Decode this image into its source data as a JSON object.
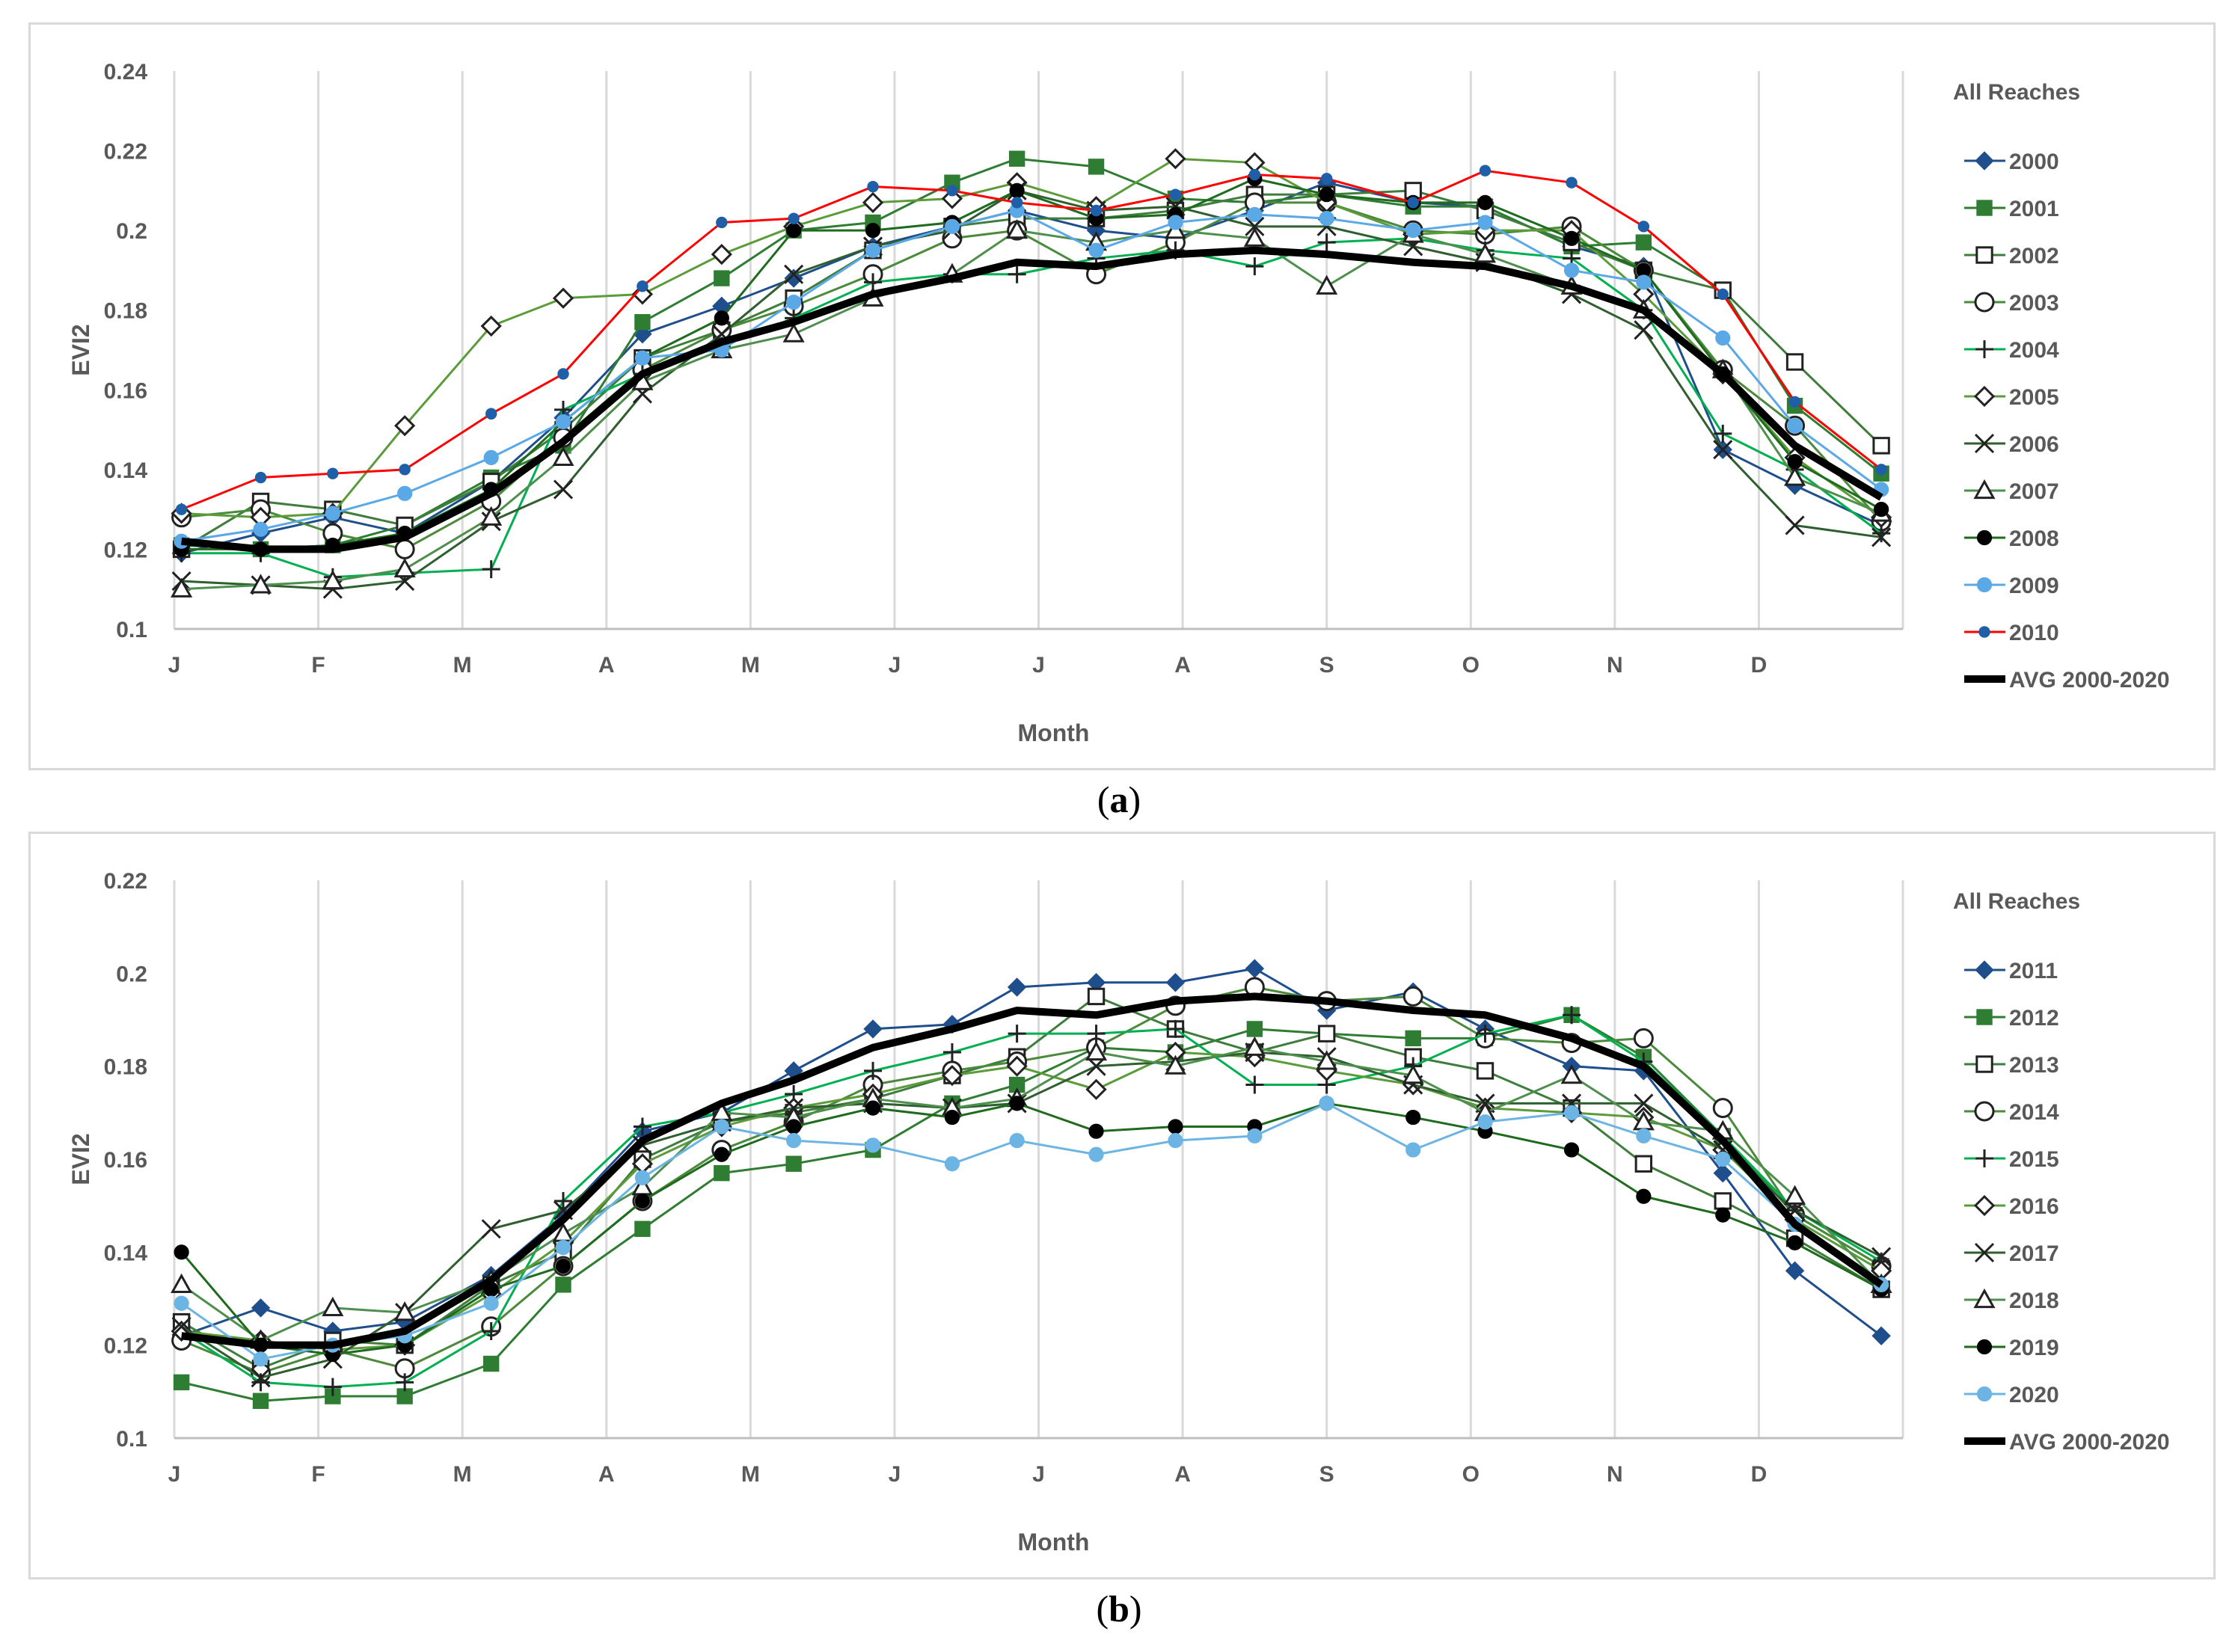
{
  "colors": {
    "grid": "#d9d9d9",
    "axis_text": "#595959",
    "avg": "#000000"
  },
  "chart_data": [
    {
      "type": "line",
      "panel_label": "a",
      "title": "All Reaches",
      "xlabel": "Month",
      "ylabel": "EVI2",
      "ylim": [
        0.1,
        0.24
      ],
      "yticks": [
        "0.1",
        "0.12",
        "0.14",
        "0.16",
        "0.18",
        "0.2",
        "0.22",
        "0.24"
      ],
      "month_labels": [
        "J",
        "F",
        "M",
        "A",
        "M",
        "J",
        "J",
        "A",
        "S",
        "O",
        "N",
        "D"
      ],
      "x_range": [
        0,
        12
      ],
      "x": [
        0.05,
        0.6,
        1.1,
        1.6,
        2.2,
        2.7,
        3.25,
        3.8,
        4.3,
        4.85,
        5.4,
        5.85,
        6.4,
        6.95,
        7.5,
        8.0,
        8.6,
        9.1,
        9.7,
        10.2,
        10.75,
        11.25,
        11.85
      ],
      "legend_position": "right",
      "grid": "vertical",
      "series": [
        {
          "name": "2000",
          "color": "#1f4e8c",
          "marker": "diamond-filled",
          "width": 3,
          "values": [
            0.119,
            0.124,
            0.128,
            0.124,
            0.137,
            0.153,
            0.174,
            0.181,
            0.188,
            0.196,
            0.201,
            0.205,
            0.2,
            0.198,
            0.205,
            0.212,
            0.207,
            0.206,
            0.196,
            0.191,
            0.145,
            0.136,
            0.126
          ]
        },
        {
          "name": "2001",
          "color": "#2e7d32",
          "marker": "square-filled",
          "width": 3,
          "values": [
            0.121,
            0.12,
            0.121,
            0.126,
            0.138,
            0.146,
            0.177,
            0.188,
            0.2,
            0.202,
            0.212,
            0.218,
            0.216,
            0.208,
            0.207,
            0.209,
            0.206,
            0.206,
            0.196,
            0.197,
            0.185,
            0.156,
            0.139
          ]
        },
        {
          "name": "2002",
          "color": "#3e7d3c",
          "marker": "square-open",
          "width": 3,
          "values": [
            0.12,
            0.132,
            0.13,
            0.126,
            0.137,
            0.15,
            0.168,
            0.175,
            0.183,
            0.195,
            0.201,
            0.203,
            0.203,
            0.205,
            0.209,
            0.209,
            0.21,
            0.205,
            0.197,
            0.19,
            0.185,
            0.167,
            0.146
          ]
        },
        {
          "name": "2003",
          "color": "#4a8a3a",
          "marker": "circle-open",
          "width": 3,
          "values": [
            0.128,
            0.13,
            0.124,
            0.12,
            0.132,
            0.148,
            0.165,
            0.175,
            0.181,
            0.189,
            0.198,
            0.2,
            0.189,
            0.197,
            0.207,
            0.207,
            0.2,
            0.199,
            0.201,
            0.19,
            0.165,
            0.151,
            0.127
          ]
        },
        {
          "name": "2004",
          "color": "#00b050",
          "marker": "plus",
          "width": 3,
          "values": [
            0.119,
            0.119,
            0.113,
            0.114,
            0.115,
            0.155,
            0.164,
            0.171,
            0.178,
            0.187,
            0.189,
            0.189,
            0.193,
            0.195,
            0.191,
            0.197,
            0.198,
            0.195,
            0.193,
            0.18,
            0.149,
            0.14,
            0.124
          ]
        },
        {
          "name": "2005",
          "color": "#5b9b3a",
          "marker": "diamond-open",
          "width": 3,
          "values": [
            0.129,
            0.128,
            0.129,
            0.151,
            0.176,
            0.183,
            0.184,
            0.194,
            0.201,
            0.207,
            0.208,
            0.212,
            0.206,
            0.218,
            0.217,
            0.207,
            0.199,
            0.2,
            0.2,
            0.184,
            0.164,
            0.143,
            0.128
          ]
        },
        {
          "name": "2006",
          "color": "#2f5f2f",
          "marker": "x",
          "width": 3,
          "values": [
            0.112,
            0.111,
            0.11,
            0.112,
            0.127,
            0.135,
            0.159,
            0.174,
            0.189,
            0.196,
            0.2,
            0.21,
            0.205,
            0.206,
            0.201,
            0.201,
            0.196,
            0.192,
            0.184,
            0.175,
            0.145,
            0.126,
            0.123
          ]
        },
        {
          "name": "2007",
          "color": "#4e8f4e",
          "marker": "triangle-open",
          "width": 3,
          "values": [
            0.11,
            0.111,
            0.112,
            0.115,
            0.128,
            0.143,
            0.162,
            0.17,
            0.174,
            0.183,
            0.189,
            0.2,
            0.197,
            0.2,
            0.198,
            0.186,
            0.199,
            0.194,
            0.186,
            0.18,
            0.165,
            0.138,
            0.129
          ]
        },
        {
          "name": "2008",
          "color": "#1e6b1e",
          "marker": "circle-filled",
          "width": 3,
          "values": [
            0.12,
            0.12,
            0.121,
            0.124,
            0.135,
            0.152,
            0.168,
            0.178,
            0.2,
            0.2,
            0.202,
            0.21,
            0.203,
            0.204,
            0.213,
            0.209,
            0.207,
            0.207,
            0.198,
            0.19,
            0.164,
            0.142,
            0.13
          ]
        },
        {
          "name": "2009",
          "color": "#5aa9e6",
          "marker": "circle-filled",
          "width": 3,
          "values": [
            0.122,
            0.125,
            0.129,
            0.134,
            0.143,
            0.152,
            0.168,
            0.17,
            0.182,
            0.195,
            0.201,
            0.205,
            0.195,
            0.202,
            0.204,
            0.203,
            0.2,
            0.202,
            0.19,
            0.187,
            0.173,
            0.151,
            0.135
          ]
        },
        {
          "name": "2010",
          "color": "#ff0000",
          "marker": "circle-filled-blue",
          "width": 3,
          "values": [
            0.13,
            0.138,
            0.139,
            0.14,
            0.154,
            0.164,
            0.186,
            0.202,
            0.203,
            0.211,
            0.21,
            0.207,
            0.205,
            0.209,
            0.214,
            0.213,
            0.207,
            0.215,
            0.212,
            0.201,
            0.184,
            0.157,
            0.14
          ]
        },
        {
          "name": "AVG 2000-2020",
          "color": "#000000",
          "marker": "none",
          "width": 10,
          "values": [
            0.122,
            0.12,
            0.12,
            0.123,
            0.134,
            0.147,
            0.164,
            0.172,
            0.177,
            0.184,
            0.188,
            0.192,
            0.191,
            0.194,
            0.195,
            0.194,
            0.192,
            0.191,
            0.186,
            0.18,
            0.164,
            0.146,
            0.133
          ]
        }
      ]
    },
    {
      "type": "line",
      "panel_label": "b",
      "title": "All Reaches",
      "xlabel": "Month",
      "ylabel": "EVI2",
      "ylim": [
        0.1,
        0.22
      ],
      "yticks": [
        "0.1",
        "0.12",
        "0.14",
        "0.16",
        "0.18",
        "0.2",
        "0.22"
      ],
      "month_labels": [
        "J",
        "F",
        "M",
        "A",
        "M",
        "J",
        "J",
        "A",
        "S",
        "O",
        "N",
        "D"
      ],
      "x_range": [
        0,
        12
      ],
      "x": [
        0.05,
        0.6,
        1.1,
        1.6,
        2.2,
        2.7,
        3.25,
        3.8,
        4.3,
        4.85,
        5.4,
        5.85,
        6.4,
        6.95,
        7.5,
        8.0,
        8.6,
        9.1,
        9.7,
        10.2,
        10.75,
        11.25,
        11.85
      ],
      "legend_position": "right",
      "grid": "vertical",
      "series": [
        {
          "name": "2011",
          "color": "#1f4e8c",
          "marker": "diamond-filled",
          "width": 3,
          "values": [
            0.122,
            0.128,
            0.123,
            0.125,
            0.135,
            0.148,
            0.166,
            0.17,
            0.179,
            0.188,
            0.189,
            0.197,
            0.198,
            0.198,
            0.201,
            0.192,
            0.196,
            0.188,
            0.18,
            0.179,
            0.157,
            0.136,
            0.122
          ]
        },
        {
          "name": "2012",
          "color": "#2e7d32",
          "marker": "square-filled",
          "width": 3,
          "values": [
            0.112,
            0.108,
            0.109,
            0.109,
            0.116,
            0.133,
            0.145,
            0.157,
            0.159,
            0.162,
            0.172,
            0.176,
            0.184,
            0.183,
            0.188,
            0.187,
            0.186,
            0.186,
            0.191,
            0.182,
            0.165,
            0.148,
            0.137
          ]
        },
        {
          "name": "2013",
          "color": "#3e7d3c",
          "marker": "square-open",
          "width": 3,
          "values": [
            0.125,
            0.115,
            0.121,
            0.12,
            0.133,
            0.14,
            0.16,
            0.168,
            0.17,
            0.173,
            0.178,
            0.182,
            0.195,
            0.188,
            0.183,
            0.187,
            0.182,
            0.179,
            0.171,
            0.159,
            0.151,
            0.143,
            0.132
          ]
        },
        {
          "name": "2014",
          "color": "#4a8a3a",
          "marker": "circle-open",
          "width": 3,
          "values": [
            0.121,
            0.114,
            0.119,
            0.115,
            0.124,
            0.137,
            0.151,
            0.162,
            0.168,
            0.176,
            0.179,
            0.181,
            0.184,
            0.193,
            0.197,
            0.194,
            0.195,
            0.186,
            0.185,
            0.186,
            0.171,
            0.148,
            0.137
          ]
        },
        {
          "name": "2015",
          "color": "#00b050",
          "marker": "plus",
          "width": 3,
          "values": [
            0.123,
            0.112,
            0.111,
            0.112,
            0.123,
            0.151,
            0.167,
            0.17,
            0.174,
            0.179,
            0.183,
            0.187,
            0.187,
            0.188,
            0.176,
            0.176,
            0.18,
            0.187,
            0.191,
            0.181,
            0.165,
            0.149,
            0.138
          ]
        },
        {
          "name": "2016",
          "color": "#5b9b3a",
          "marker": "diamond-open",
          "width": 3,
          "values": [
            0.123,
            0.121,
            0.119,
            0.12,
            0.131,
            0.142,
            0.159,
            0.167,
            0.171,
            0.174,
            0.178,
            0.18,
            0.175,
            0.183,
            0.182,
            0.179,
            0.176,
            0.171,
            0.17,
            0.169,
            0.162,
            0.147,
            0.136
          ]
        },
        {
          "name": "2017",
          "color": "#2f5f2f",
          "marker": "x",
          "width": 3,
          "values": [
            0.124,
            0.113,
            0.117,
            0.127,
            0.145,
            0.149,
            0.163,
            0.168,
            0.171,
            0.172,
            0.171,
            0.172,
            0.18,
            0.181,
            0.183,
            0.182,
            0.176,
            0.172,
            0.172,
            0.172,
            0.162,
            0.149,
            0.139
          ]
        },
        {
          "name": "2018",
          "color": "#4e8f4e",
          "marker": "triangle-open",
          "width": 3,
          "values": [
            0.133,
            0.121,
            0.128,
            0.127,
            0.134,
            0.144,
            0.154,
            0.17,
            0.169,
            0.173,
            0.171,
            0.173,
            0.183,
            0.18,
            0.184,
            0.181,
            0.178,
            0.17,
            0.178,
            0.168,
            0.166,
            0.152,
            0.133
          ]
        },
        {
          "name": "2019",
          "color": "#1e6b1e",
          "marker": "circle-filled",
          "width": 3,
          "values": [
            0.14,
            0.12,
            0.118,
            0.12,
            0.132,
            0.137,
            0.151,
            0.161,
            0.167,
            0.171,
            0.169,
            0.172,
            0.166,
            0.167,
            0.167,
            0.172,
            0.169,
            0.166,
            0.162,
            0.152,
            0.148,
            0.142,
            0.132
          ]
        },
        {
          "name": "2020",
          "color": "#6cb4e4",
          "marker": "circle-filled",
          "width": 3,
          "values": [
            0.129,
            0.117,
            0.12,
            0.122,
            0.129,
            0.141,
            0.156,
            0.167,
            0.164,
            0.163,
            0.159,
            0.164,
            0.161,
            0.164,
            0.165,
            0.172,
            0.162,
            0.168,
            0.17,
            0.165,
            0.16,
            0.146,
            0.133
          ]
        },
        {
          "name": "AVG 2000-2020",
          "color": "#000000",
          "marker": "none",
          "width": 10,
          "values": [
            0.122,
            0.12,
            0.12,
            0.123,
            0.134,
            0.147,
            0.164,
            0.172,
            0.177,
            0.184,
            0.188,
            0.192,
            0.191,
            0.194,
            0.195,
            0.194,
            0.192,
            0.191,
            0.186,
            0.18,
            0.164,
            0.146,
            0.133
          ]
        }
      ]
    }
  ]
}
